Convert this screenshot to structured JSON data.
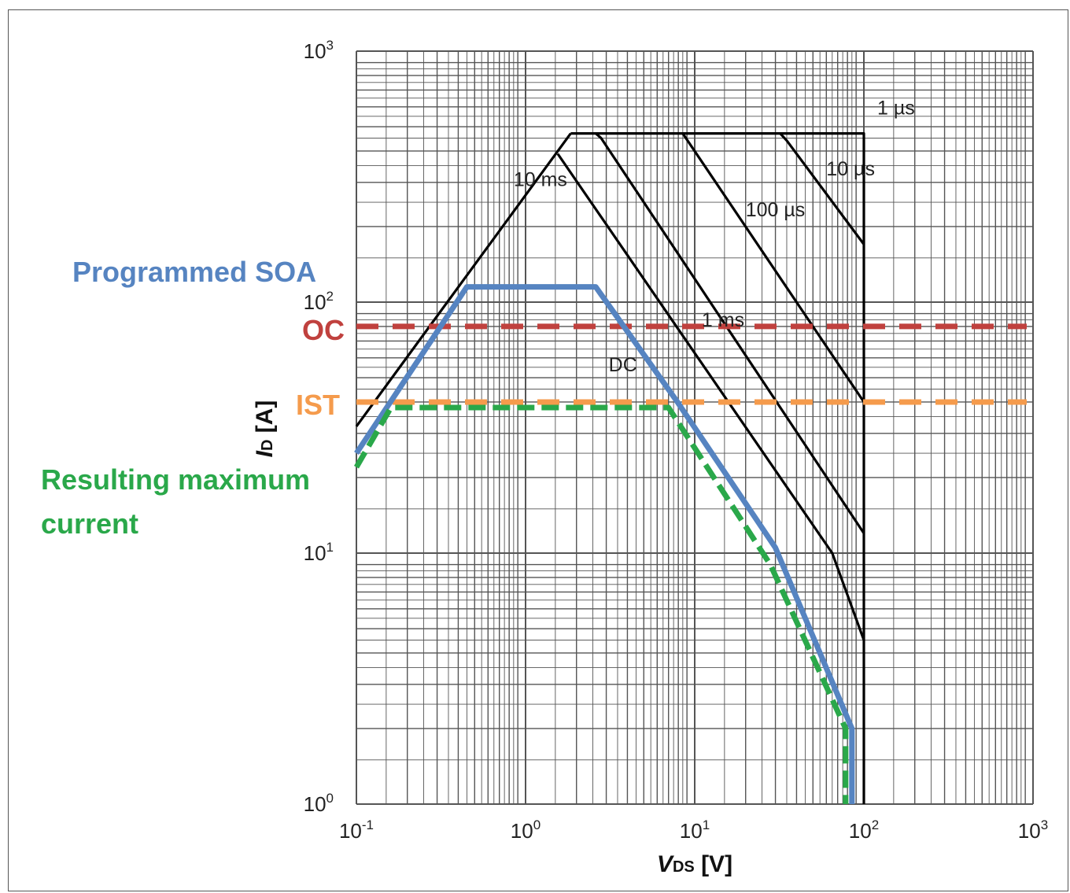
{
  "chart_data": {
    "type": "line",
    "x_scale": "log",
    "y_scale": "log",
    "xlim": [
      0.1,
      1000
    ],
    "ylim": [
      1,
      1000
    ],
    "grid": true,
    "xlabel": {
      "italic": "V",
      "sub": "DS",
      "rest": " [V]"
    },
    "ylabel": {
      "italic": "I",
      "sub": "D",
      "rest": " [A]"
    },
    "x_ticks": [
      {
        "base": "10",
        "exp": "-1",
        "value": 0.1
      },
      {
        "base": "10",
        "exp": "0",
        "value": 1
      },
      {
        "base": "10",
        "exp": "1",
        "value": 10
      },
      {
        "base": "10",
        "exp": "2",
        "value": 100
      },
      {
        "base": "10",
        "exp": "3",
        "value": 1000
      }
    ],
    "y_ticks": [
      {
        "base": "10",
        "exp": "0",
        "value": 1
      },
      {
        "base": "10",
        "exp": "1",
        "value": 10
      },
      {
        "base": "10",
        "exp": "2",
        "value": 100
      },
      {
        "base": "10",
        "exp": "3",
        "value": 1000
      }
    ],
    "soa_curves": [
      {
        "name": "1 µs",
        "label_at": [
          120,
          560
        ],
        "points": [
          [
            1.85,
            470
          ],
          [
            100,
            470
          ],
          [
            100,
            1
          ]
        ]
      },
      {
        "name": "10 µs",
        "label_at": [
          60,
          320
        ],
        "points": [
          [
            32,
            470
          ],
          [
            35,
            440
          ],
          [
            100,
            170
          ]
        ]
      },
      {
        "name": "100 µs",
        "label_at": [
          20,
          220
        ],
        "points": [
          [
            8.5,
            470
          ],
          [
            100,
            40
          ]
        ]
      },
      {
        "name": "1 ms",
        "label_at": [
          11,
          80
        ],
        "points": [
          [
            2.6,
            470
          ],
          [
            2.8,
            450
          ],
          [
            100,
            12
          ]
        ]
      },
      {
        "name": "10 ms",
        "label_at": [
          0.85,
          290
        ],
        "points": [
          [
            1.55,
            390
          ],
          [
            65,
            10
          ],
          [
            100,
            4.5
          ]
        ]
      },
      {
        "name": "DC",
        "label_at": [
          3.1,
          53
        ],
        "points": [
          [
            0.1,
            32
          ],
          [
            1.85,
            470
          ]
        ]
      }
    ],
    "limit_lines": [
      {
        "name": "OC",
        "y": 80,
        "color": "#C0413E"
      },
      {
        "name": "IST",
        "y": 40,
        "color": "#F59B4C"
      }
    ],
    "programmed_soa": {
      "name": "Programmed SOA",
      "color": "#5684C1",
      "points": [
        [
          0.1,
          25
        ],
        [
          0.45,
          115
        ],
        [
          2.6,
          115
        ],
        [
          7.9,
          40
        ],
        [
          30,
          10.5
        ],
        [
          85,
          2
        ],
        [
          85,
          1
        ]
      ]
    },
    "resulting_max_current": {
      "name": "Resulting maximum current",
      "color": "#2AA84A",
      "points": [
        [
          0.1,
          22
        ],
        [
          0.16,
          38
        ],
        [
          7.0,
          38
        ],
        [
          28,
          9
        ],
        [
          78,
          2
        ],
        [
          78,
          1
        ]
      ]
    }
  },
  "annotations": {
    "programmed_soa": "Programmed SOA",
    "oc": "OC",
    "ist": "IST",
    "resulting_line1": "Resulting maximum",
    "resulting_line2": "current"
  },
  "colors": {
    "grid": "#555555",
    "soa": "#000000",
    "programmed": "#5684C1",
    "oc": "#C0413E",
    "ist": "#F59B4C",
    "resulting": "#2AA84A"
  }
}
